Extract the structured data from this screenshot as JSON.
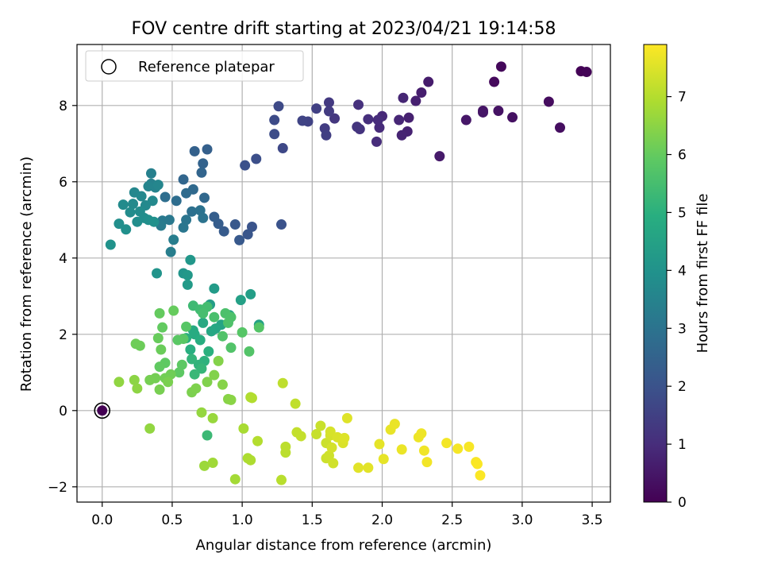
{
  "chart_data": {
    "type": "scatter",
    "title": "FOV centre drift starting at 2023/04/21 19:14:58",
    "xlabel": "Angular distance from reference (arcmin)",
    "ylabel": "Rotation from reference (arcmin)",
    "xlim": [
      -0.18,
      3.63
    ],
    "ylim": [
      -2.4,
      9.6
    ],
    "xticks": [
      0.0,
      0.5,
      1.0,
      1.5,
      2.0,
      2.5,
      3.0,
      3.5
    ],
    "xtick_labels": [
      "0.0",
      "0.5",
      "1.0",
      "1.5",
      "2.0",
      "2.5",
      "3.0",
      "3.5"
    ],
    "yticks": [
      -2,
      0,
      2,
      4,
      6,
      8
    ],
    "ytick_labels": [
      "−2",
      "0",
      "2",
      "4",
      "6",
      "8"
    ],
    "grid": true,
    "legend": {
      "position": "top-left",
      "entries": [
        "Reference platepar"
      ]
    },
    "colorbar": {
      "label": "Hours from first FF file",
      "min": 0,
      "max": 7.9,
      "ticks": [
        0,
        1,
        2,
        3,
        4,
        5,
        6,
        7
      ],
      "tick_labels": [
        "0",
        "1",
        "2",
        "3",
        "4",
        "5",
        "6",
        "7"
      ],
      "colormap": "viridis"
    },
    "reference_point": {
      "x": 0.0,
      "y": 0.0,
      "hours": 0
    },
    "points": [
      [
        3.42,
        8.9,
        0.05
      ],
      [
        3.46,
        8.88,
        0.08
      ],
      [
        2.85,
        9.02,
        0.15
      ],
      [
        2.8,
        8.62,
        0.2
      ],
      [
        3.19,
        8.1,
        0.25
      ],
      [
        3.27,
        7.42,
        0.3
      ],
      [
        2.93,
        7.69,
        0.35
      ],
      [
        2.83,
        7.86,
        0.38
      ],
      [
        2.72,
        7.86,
        0.42
      ],
      [
        2.72,
        7.82,
        0.45
      ],
      [
        2.6,
        7.62,
        0.5
      ],
      [
        2.41,
        6.67,
        0.55
      ],
      [
        2.33,
        8.62,
        0.6
      ],
      [
        2.28,
        8.34,
        0.65
      ],
      [
        2.24,
        8.12,
        0.7
      ],
      [
        2.19,
        7.68,
        0.72
      ],
      [
        2.18,
        7.32,
        0.75
      ],
      [
        2.14,
        7.22,
        0.78
      ],
      [
        2.15,
        8.2,
        0.82
      ],
      [
        2.12,
        7.62,
        0.86
      ],
      [
        2.0,
        7.72,
        0.9
      ],
      [
        1.98,
        7.42,
        0.95
      ],
      [
        1.97,
        7.62,
        0.98
      ],
      [
        1.96,
        7.05,
        1.0
      ],
      [
        1.9,
        7.64,
        1.05
      ],
      [
        1.83,
        8.02,
        1.1
      ],
      [
        1.84,
        7.38,
        1.15
      ],
      [
        1.82,
        7.44,
        1.2
      ],
      [
        1.66,
        7.66,
        1.25
      ],
      [
        1.62,
        8.08,
        1.3
      ],
      [
        1.62,
        7.85,
        1.35
      ],
      [
        1.59,
        7.4,
        1.4
      ],
      [
        1.6,
        7.22,
        1.45
      ],
      [
        1.53,
        7.92,
        1.5
      ],
      [
        1.47,
        7.58,
        1.55
      ],
      [
        1.43,
        7.6,
        1.6
      ],
      [
        1.29,
        6.88,
        1.7
      ],
      [
        1.26,
        7.98,
        1.75
      ],
      [
        1.23,
        7.62,
        1.8
      ],
      [
        1.23,
        7.25,
        1.85
      ],
      [
        1.1,
        6.6,
        1.9
      ],
      [
        1.02,
        6.43,
        1.95
      ],
      [
        1.28,
        4.88,
        2.0
      ],
      [
        1.07,
        4.82,
        2.05
      ],
      [
        1.04,
        4.62,
        2.1
      ],
      [
        0.95,
        4.88,
        2.15
      ],
      [
        0.98,
        4.47,
        2.2
      ],
      [
        0.87,
        4.7,
        2.25
      ],
      [
        0.83,
        4.9,
        2.3
      ],
      [
        0.8,
        5.08,
        2.35
      ],
      [
        0.75,
        6.85,
        2.4
      ],
      [
        0.66,
        6.8,
        2.45
      ],
      [
        0.72,
        6.48,
        2.5
      ],
      [
        0.71,
        6.24,
        2.55
      ],
      [
        0.58,
        6.06,
        2.6
      ],
      [
        0.73,
        5.58,
        2.65
      ],
      [
        0.65,
        5.8,
        2.7
      ],
      [
        0.6,
        5.7,
        2.75
      ],
      [
        0.53,
        5.5,
        2.8
      ],
      [
        0.45,
        5.6,
        2.85
      ],
      [
        0.64,
        5.22,
        2.9
      ],
      [
        0.7,
        5.25,
        2.95
      ],
      [
        0.72,
        5.05,
        3.0
      ],
      [
        0.6,
        5.0,
        3.05
      ],
      [
        0.58,
        4.8,
        3.1
      ],
      [
        0.48,
        5.0,
        3.15
      ],
      [
        0.43,
        4.98,
        3.2
      ],
      [
        0.42,
        4.85,
        3.25
      ],
      [
        0.51,
        4.48,
        3.3
      ],
      [
        0.49,
        4.16,
        3.35
      ],
      [
        0.35,
        6.22,
        3.4
      ],
      [
        0.35,
        5.95,
        3.45
      ],
      [
        0.38,
        5.85,
        3.5
      ],
      [
        0.33,
        5.88,
        3.55
      ],
      [
        0.4,
        5.92,
        3.6
      ],
      [
        0.23,
        5.72,
        3.62
      ],
      [
        0.28,
        5.62,
        3.65
      ],
      [
        0.36,
        5.5,
        3.68
      ],
      [
        0.31,
        5.38,
        3.7
      ],
      [
        0.22,
        5.42,
        3.72
      ],
      [
        0.15,
        5.4,
        3.75
      ],
      [
        0.2,
        5.2,
        3.78
      ],
      [
        0.27,
        5.22,
        3.8
      ],
      [
        0.3,
        5.05,
        3.82
      ],
      [
        0.25,
        4.95,
        3.85
      ],
      [
        0.33,
        5.0,
        3.88
      ],
      [
        0.12,
        4.9,
        3.9
      ],
      [
        0.17,
        4.75,
        3.92
      ],
      [
        0.37,
        4.95,
        3.95
      ],
      [
        0.06,
        4.35,
        4.0
      ],
      [
        0.39,
        3.6,
        4.05
      ],
      [
        0.58,
        3.6,
        4.1
      ],
      [
        0.63,
        3.95,
        4.15
      ],
      [
        0.61,
        3.55,
        4.2
      ],
      [
        0.61,
        3.3,
        4.25
      ],
      [
        0.8,
        3.2,
        4.3
      ],
      [
        0.77,
        2.78,
        4.35
      ],
      [
        1.06,
        3.05,
        4.4
      ],
      [
        0.99,
        2.9,
        4.45
      ],
      [
        1.12,
        2.25,
        4.5
      ],
      [
        0.91,
        2.5,
        4.55
      ],
      [
        0.85,
        2.25,
        4.6
      ],
      [
        0.81,
        2.15,
        4.65
      ],
      [
        0.78,
        2.08,
        4.7
      ],
      [
        0.72,
        2.3,
        4.75
      ],
      [
        0.65,
        2.1,
        4.8
      ],
      [
        0.66,
        2.0,
        4.85
      ],
      [
        0.6,
        1.9,
        4.9
      ],
      [
        0.7,
        1.85,
        4.92
      ],
      [
        0.63,
        1.6,
        4.95
      ],
      [
        0.76,
        1.55,
        5.0
      ],
      [
        0.73,
        1.3,
        5.05
      ],
      [
        0.69,
        1.2,
        5.1
      ],
      [
        0.64,
        1.35,
        5.15
      ],
      [
        0.71,
        1.1,
        5.2
      ],
      [
        0.66,
        0.95,
        5.25
      ],
      [
        0.75,
        -0.65,
        5.3
      ],
      [
        0.65,
        2.75,
        5.35
      ],
      [
        0.7,
        2.65,
        5.4
      ],
      [
        0.75,
        2.72,
        5.45
      ],
      [
        0.72,
        2.55,
        5.5
      ],
      [
        0.8,
        2.45,
        5.55
      ],
      [
        0.88,
        2.55,
        5.6
      ],
      [
        0.92,
        2.45,
        5.62
      ],
      [
        0.9,
        2.3,
        5.65
      ],
      [
        0.86,
        1.95,
        5.68
      ],
      [
        0.92,
        1.65,
        5.7
      ],
      [
        1.05,
        1.55,
        5.72
      ],
      [
        1.12,
        2.18,
        5.75
      ],
      [
        1.0,
        2.05,
        5.78
      ],
      [
        0.6,
        2.2,
        5.8
      ],
      [
        0.58,
        1.88,
        5.82
      ],
      [
        0.54,
        1.85,
        5.85
      ],
      [
        0.57,
        1.2,
        5.88
      ],
      [
        0.55,
        1.0,
        5.9
      ],
      [
        0.45,
        1.25,
        5.92
      ],
      [
        0.41,
        1.15,
        5.95
      ],
      [
        0.43,
        2.18,
        5.97
      ],
      [
        0.41,
        2.55,
        6.0
      ],
      [
        0.51,
        2.62,
        6.02
      ],
      [
        0.4,
        1.9,
        6.05
      ],
      [
        0.42,
        1.6,
        6.08
      ],
      [
        0.27,
        1.7,
        6.1
      ],
      [
        0.24,
        1.75,
        6.12
      ],
      [
        0.49,
        0.95,
        6.15
      ],
      [
        0.45,
        0.85,
        6.18
      ],
      [
        0.38,
        0.85,
        6.2
      ],
      [
        0.34,
        0.8,
        6.22
      ],
      [
        0.41,
        0.55,
        6.25
      ],
      [
        0.47,
        0.75,
        6.28
      ],
      [
        0.64,
        0.48,
        6.3
      ],
      [
        0.67,
        0.58,
        6.33
      ],
      [
        0.75,
        0.75,
        6.35
      ],
      [
        0.8,
        0.93,
        6.38
      ],
      [
        0.83,
        1.3,
        6.4
      ],
      [
        0.86,
        0.68,
        6.42
      ],
      [
        0.9,
        0.3,
        6.45
      ],
      [
        0.92,
        0.28,
        6.48
      ],
      [
        0.23,
        0.8,
        6.5
      ],
      [
        0.25,
        0.58,
        6.52
      ],
      [
        0.12,
        0.75,
        6.55
      ],
      [
        0.34,
        -0.47,
        6.58
      ],
      [
        0.71,
        -0.05,
        6.6
      ],
      [
        0.79,
        -0.2,
        6.65
      ],
      [
        0.73,
        -1.45,
        6.7
      ],
      [
        0.79,
        -1.37,
        6.75
      ],
      [
        0.95,
        -1.8,
        6.8
      ],
      [
        1.01,
        -0.47,
        6.85
      ],
      [
        1.04,
        -1.25,
        6.9
      ],
      [
        1.06,
        -1.3,
        6.92
      ],
      [
        1.06,
        0.35,
        6.95
      ],
      [
        1.07,
        0.33,
        6.98
      ],
      [
        1.11,
        -0.8,
        7.0
      ],
      [
        1.28,
        -1.82,
        7.05
      ],
      [
        1.31,
        -1.1,
        7.08
      ],
      [
        1.31,
        -0.95,
        7.1
      ],
      [
        1.29,
        0.72,
        7.12
      ],
      [
        1.38,
        0.18,
        7.15
      ],
      [
        1.39,
        -0.57,
        7.18
      ],
      [
        1.42,
        -0.67,
        7.2
      ],
      [
        1.53,
        -0.62,
        7.22
      ],
      [
        1.56,
        -0.4,
        7.25
      ],
      [
        1.6,
        -0.85,
        7.28
      ],
      [
        1.6,
        -1.25,
        7.3
      ],
      [
        1.62,
        -1.18,
        7.32
      ],
      [
        1.65,
        -1.38,
        7.35
      ],
      [
        1.63,
        -0.65,
        7.38
      ],
      [
        1.64,
        -0.97,
        7.4
      ],
      [
        1.63,
        -0.55,
        7.42
      ],
      [
        1.68,
        -0.7,
        7.45
      ],
      [
        1.72,
        -0.85,
        7.47
      ],
      [
        1.73,
        -0.72,
        7.5
      ],
      [
        1.75,
        -0.2,
        7.52
      ],
      [
        1.83,
        -1.5,
        7.55
      ],
      [
        1.9,
        -1.5,
        7.57
      ],
      [
        1.98,
        -0.88,
        7.6
      ],
      [
        2.01,
        -1.27,
        7.62
      ],
      [
        2.06,
        -0.5,
        7.64
      ],
      [
        2.09,
        -0.35,
        7.66
      ],
      [
        2.14,
        -1.02,
        7.68
      ],
      [
        2.26,
        -0.7,
        7.7
      ],
      [
        2.28,
        -0.6,
        7.72
      ],
      [
        2.3,
        -1.05,
        7.74
      ],
      [
        2.32,
        -1.35,
        7.76
      ],
      [
        2.46,
        -0.85,
        7.78
      ],
      [
        2.54,
        -1.0,
        7.8
      ],
      [
        2.62,
        -0.95,
        7.82
      ],
      [
        2.67,
        -1.35,
        7.84
      ],
      [
        2.68,
        -1.4,
        7.86
      ],
      [
        2.7,
        -1.7,
        7.88
      ]
    ]
  }
}
